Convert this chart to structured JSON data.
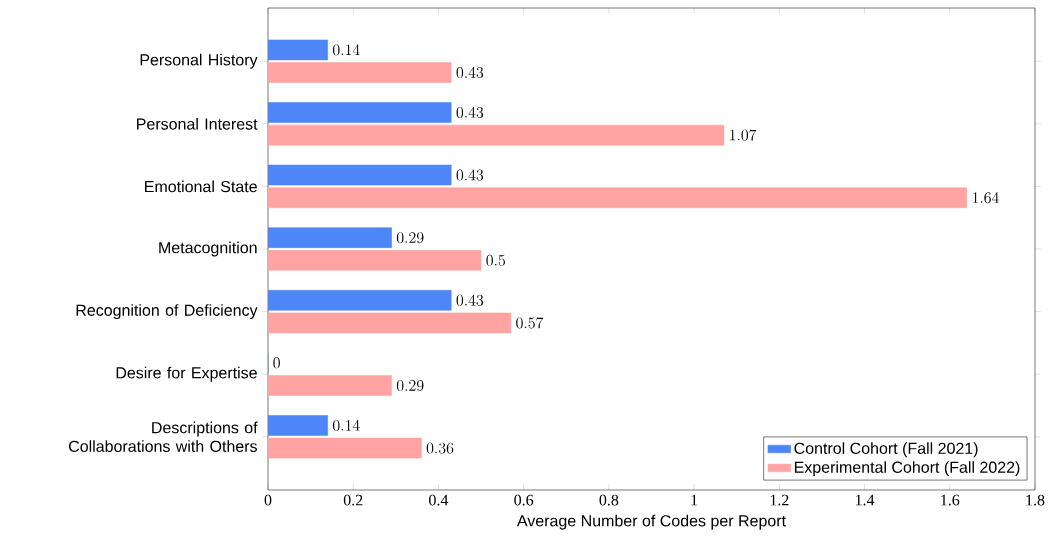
{
  "chart_data": {
    "type": "bar",
    "orientation": "horizontal",
    "xlabel": "Average Number of Codes per Report",
    "categories": [
      "Personal History",
      "Personal Interest",
      "Emotional State",
      "Metacognition",
      "Recognition of Deficiency",
      "Desire for Expertise",
      "Descriptions of Collaborations with Others"
    ],
    "series": [
      {
        "name": "Control Cohort (Fall 2021)",
        "color": "#4f86f7",
        "values": [
          0.14,
          0.43,
          0.43,
          0.29,
          0.43,
          0,
          0.14
        ]
      },
      {
        "name": "Experimental Cohort (Fall 2022)",
        "color": "#ffa3a3",
        "values": [
          0.43,
          1.07,
          1.64,
          0.5,
          0.57,
          0.29,
          0.36
        ]
      }
    ],
    "xlim": [
      0,
      1.8
    ],
    "xticks": [
      0,
      0.2,
      0.4,
      0.6,
      0.8,
      1,
      1.2,
      1.4,
      1.6,
      1.8
    ],
    "data_labels": true,
    "legend": "bottom right",
    "grid": false
  }
}
